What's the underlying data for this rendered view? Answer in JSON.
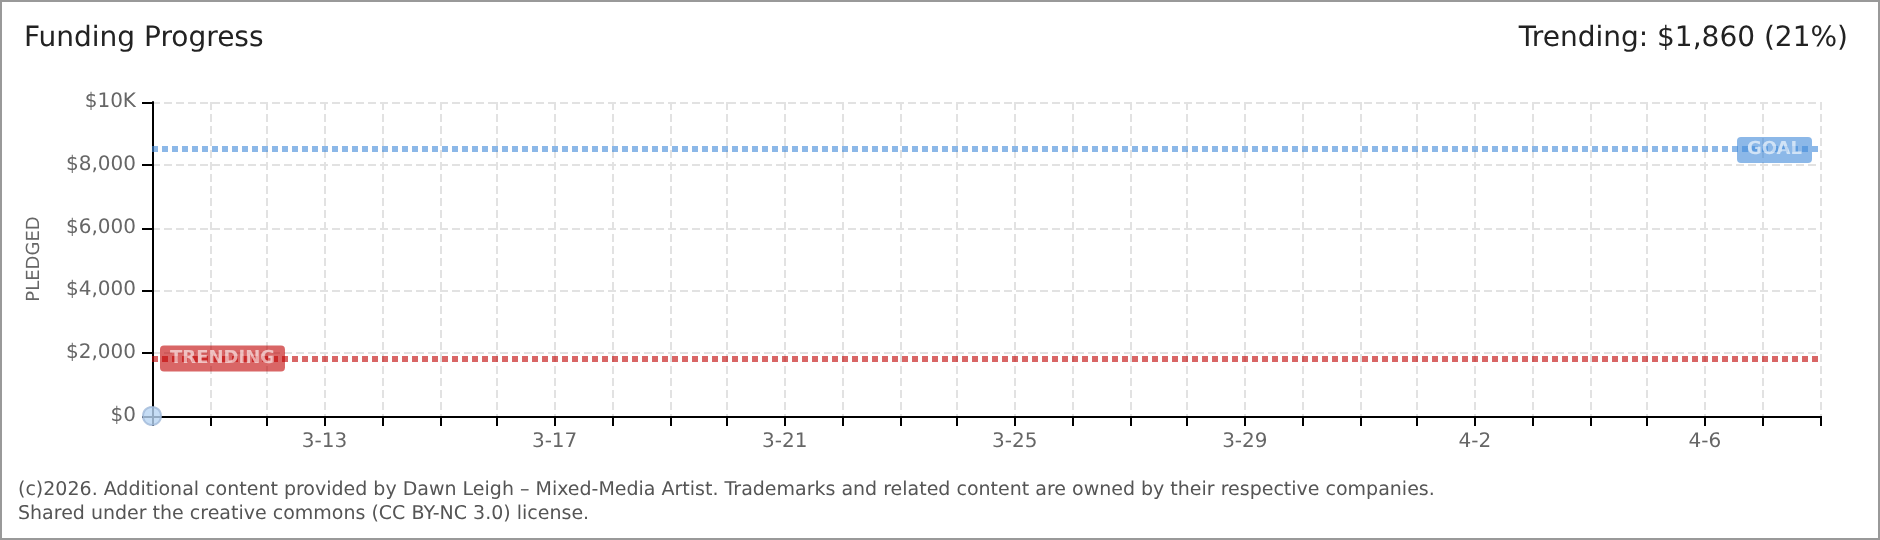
{
  "chart_data": {
    "type": "scatter",
    "title": "Funding Progress",
    "subtitle": "Trending: $1,860 (21%)",
    "ylabel": "PLEDGED",
    "x": [
      "--03-10"
    ],
    "series": [
      {
        "color": "#b8d4f2",
        "values": [
          0
        ]
      }
    ],
    "marker": "circle",
    "xlim": [
      "--03-10",
      "--04-08"
    ],
    "xticks": [
      {
        "value": "--03-10",
        "label": null
      },
      {
        "value": "--03-11",
        "label": null
      },
      {
        "value": "--03-12",
        "label": null
      },
      {
        "value": "--03-13",
        "label": "3-13"
      },
      {
        "value": "--03-14",
        "label": null
      },
      {
        "value": "--03-15",
        "label": null
      },
      {
        "value": "--03-16",
        "label": null
      },
      {
        "value": "--03-17",
        "label": "3-17"
      },
      {
        "value": "--03-18",
        "label": null
      },
      {
        "value": "--03-19",
        "label": null
      },
      {
        "value": "--03-20",
        "label": null
      },
      {
        "value": "--03-21",
        "label": "3-21"
      },
      {
        "value": "--03-22",
        "label": null
      },
      {
        "value": "--03-23",
        "label": null
      },
      {
        "value": "--03-24",
        "label": null
      },
      {
        "value": "--03-25",
        "label": "3-25"
      },
      {
        "value": "--03-26",
        "label": null
      },
      {
        "value": "--03-27",
        "label": null
      },
      {
        "value": "--03-28",
        "label": null
      },
      {
        "value": "--03-29",
        "label": "3-29"
      },
      {
        "value": "--03-30",
        "label": null
      },
      {
        "value": "--03-31",
        "label": null
      },
      {
        "value": "--04-01",
        "label": null
      },
      {
        "value": "--04-02",
        "label": "4-2"
      },
      {
        "value": "--04-03",
        "label": null
      },
      {
        "value": "--04-04",
        "label": null
      },
      {
        "value": "--04-05",
        "label": null
      },
      {
        "value": "--04-06",
        "label": "4-6"
      },
      {
        "value": "--04-07",
        "label": null
      },
      {
        "value": "--04-08",
        "label": null
      }
    ],
    "ylim": [
      0,
      10000
    ],
    "yticks": [
      {
        "value": 0,
        "label": "$0"
      },
      {
        "value": 2000,
        "label": "$2,000"
      },
      {
        "value": 4000,
        "label": "$4,000"
      },
      {
        "value": 6000,
        "label": "$6,000"
      },
      {
        "value": 8000,
        "label": "$8,000"
      },
      {
        "value": 10000,
        "label": "$10K"
      }
    ],
    "grid": true,
    "ref_lines": [
      {
        "axis": "y",
        "value": 8500,
        "label": "GOAL",
        "color": "#3f88d8",
        "line_style": "dotted"
      },
      {
        "axis": "y",
        "value": 1860,
        "label": "TRENDING",
        "color": "#c00000",
        "line_style": "dotted"
      }
    ],
    "annotations": [
      "(c)2026. Additional content provided by Dawn Leigh – Mixed-Media Artist. Trademarks and related content are owned by their respective companies.",
      "Shared under the creative commons (CC BY-NC 3.0) license."
    ]
  }
}
